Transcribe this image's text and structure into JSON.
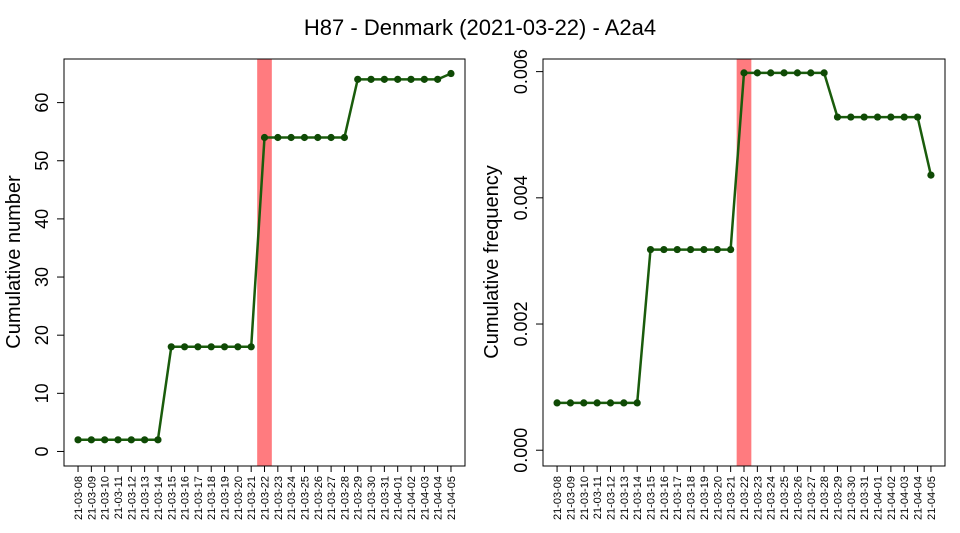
{
  "title": "H87 - Denmark (2021-03-22) - A2a4",
  "colors": {
    "line": "#1a5c0c",
    "marker": "#0f4a05",
    "highlight": "#ff7b7f"
  },
  "chart_data": [
    {
      "type": "line",
      "ylabel": "Cumulative number",
      "ylim": [
        -2.5,
        67.5
      ],
      "yticks": [
        "0",
        "10",
        "20",
        "30",
        "40",
        "50",
        "60"
      ],
      "highlight_category": "21-03-22",
      "categories": [
        "21-03-08",
        "21-03-09",
        "21-03-10",
        "21-03-11",
        "21-03-12",
        "21-03-13",
        "21-03-14",
        "21-03-15",
        "21-03-16",
        "21-03-17",
        "21-03-18",
        "21-03-19",
        "21-03-20",
        "21-03-21",
        "21-03-22",
        "21-03-23",
        "21-03-24",
        "21-03-25",
        "21-03-26",
        "21-03-27",
        "21-03-28",
        "21-03-29",
        "21-03-30",
        "21-03-31",
        "21-04-01",
        "21-04-02",
        "21-04-03",
        "21-04-04",
        "21-04-05"
      ],
      "values": [
        2,
        2,
        2,
        2,
        2,
        2,
        2,
        18,
        18,
        18,
        18,
        18,
        18,
        18,
        54,
        54,
        54,
        54,
        54,
        54,
        54,
        64,
        64,
        64,
        64,
        64,
        64,
        64,
        65
      ]
    },
    {
      "type": "line",
      "ylabel": "Cumulative frequency",
      "ylim": [
        -0.00025,
        0.0062
      ],
      "yticks": [
        "0.000",
        "0.002",
        "0.004",
        "0.006"
      ],
      "highlight_category": "21-03-22",
      "categories": [
        "21-03-08",
        "21-03-09",
        "21-03-10",
        "21-03-11",
        "21-03-12",
        "21-03-13",
        "21-03-14",
        "21-03-15",
        "21-03-16",
        "21-03-17",
        "21-03-18",
        "21-03-19",
        "21-03-20",
        "21-03-21",
        "21-03-22",
        "21-03-23",
        "21-03-24",
        "21-03-25",
        "21-03-26",
        "21-03-27",
        "21-03-28",
        "21-03-29",
        "21-03-30",
        "21-03-31",
        "21-04-01",
        "21-04-02",
        "21-04-03",
        "21-04-04",
        "21-04-05"
      ],
      "values": [
        0.00075,
        0.00075,
        0.00075,
        0.00075,
        0.00075,
        0.00075,
        0.00075,
        0.00318,
        0.00318,
        0.00318,
        0.00318,
        0.00318,
        0.00318,
        0.00318,
        0.00598,
        0.00598,
        0.00598,
        0.00598,
        0.00598,
        0.00598,
        0.00598,
        0.00528,
        0.00528,
        0.00528,
        0.00528,
        0.00528,
        0.00528,
        0.00528,
        0.00436
      ]
    }
  ]
}
